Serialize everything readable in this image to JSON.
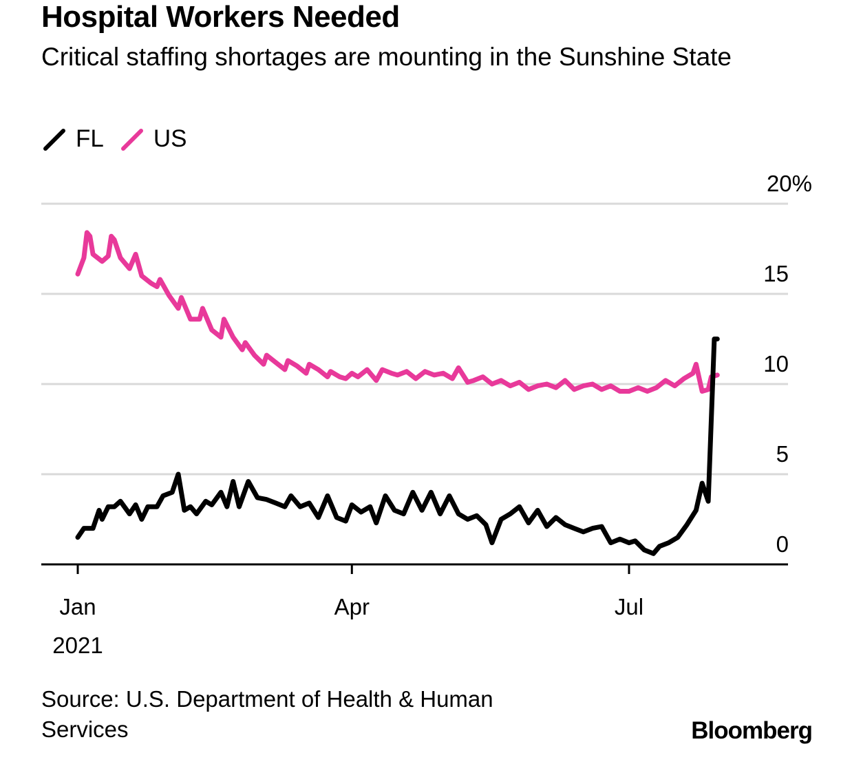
{
  "title": "Hospital Workers Needed",
  "subtitle": "Critical staffing shortages are mounting in the Sunshine State",
  "source": "Source: U.S. Department of Health & Human Services",
  "brand": "Bloomberg",
  "colors": {
    "FL": "#000000",
    "US": "#e8399a",
    "grid": "#d9d9d9",
    "axis": "#000000"
  },
  "chart_data": {
    "type": "line",
    "title": "Hospital Workers Needed",
    "subtitle": "Critical staffing shortages are mounting in the Sunshine State",
    "xlabel": "",
    "ylabel": "",
    "y_unit": "%",
    "ylim": [
      0,
      20
    ],
    "y_ticks": [
      0,
      5,
      10,
      15,
      20
    ],
    "y_tick_labels": [
      "0",
      "5",
      "10",
      "15",
      "20%"
    ],
    "x_ticks": [
      {
        "date": "2021-01-01",
        "label": "Jan",
        "sublabel": "2021"
      },
      {
        "date": "2021-04-01",
        "label": "Apr",
        "sublabel": ""
      },
      {
        "date": "2021-07-01",
        "label": "Jul",
        "sublabel": ""
      }
    ],
    "xlim": [
      "2020-12-28",
      "2021-08-20"
    ],
    "grid": true,
    "legend": "top-left",
    "series": [
      {
        "name": "FL",
        "color": "#000000",
        "points": [
          [
            "2021-01-01",
            1.5
          ],
          [
            "2021-01-03",
            2.0
          ],
          [
            "2021-01-06",
            2.0
          ],
          [
            "2021-01-08",
            3.0
          ],
          [
            "2021-01-09",
            2.5
          ],
          [
            "2021-01-11",
            3.2
          ],
          [
            "2021-01-13",
            3.2
          ],
          [
            "2021-01-15",
            3.5
          ],
          [
            "2021-01-18",
            2.8
          ],
          [
            "2021-01-20",
            3.3
          ],
          [
            "2021-01-22",
            2.5
          ],
          [
            "2021-01-24",
            3.2
          ],
          [
            "2021-01-27",
            3.2
          ],
          [
            "2021-01-29",
            3.8
          ],
          [
            "2021-02-01",
            4.0
          ],
          [
            "2021-02-03",
            5.0
          ],
          [
            "2021-02-05",
            3.0
          ],
          [
            "2021-02-07",
            3.2
          ],
          [
            "2021-02-09",
            2.8
          ],
          [
            "2021-02-12",
            3.5
          ],
          [
            "2021-02-14",
            3.3
          ],
          [
            "2021-02-17",
            4.0
          ],
          [
            "2021-02-19",
            3.2
          ],
          [
            "2021-02-21",
            4.6
          ],
          [
            "2021-02-23",
            3.2
          ],
          [
            "2021-02-26",
            4.6
          ],
          [
            "2021-03-01",
            3.7
          ],
          [
            "2021-03-04",
            3.6
          ],
          [
            "2021-03-07",
            3.4
          ],
          [
            "2021-03-10",
            3.2
          ],
          [
            "2021-03-12",
            3.8
          ],
          [
            "2021-03-15",
            3.2
          ],
          [
            "2021-03-18",
            3.4
          ],
          [
            "2021-03-21",
            2.6
          ],
          [
            "2021-03-24",
            3.8
          ],
          [
            "2021-03-27",
            2.6
          ],
          [
            "2021-03-30",
            2.4
          ],
          [
            "2021-04-01",
            3.3
          ],
          [
            "2021-04-04",
            2.9
          ],
          [
            "2021-04-07",
            3.2
          ],
          [
            "2021-04-09",
            2.3
          ],
          [
            "2021-04-12",
            3.8
          ],
          [
            "2021-04-15",
            3.0
          ],
          [
            "2021-04-18",
            2.8
          ],
          [
            "2021-04-21",
            4.0
          ],
          [
            "2021-04-24",
            3.0
          ],
          [
            "2021-04-27",
            4.0
          ],
          [
            "2021-04-30",
            2.8
          ],
          [
            "2021-05-03",
            3.8
          ],
          [
            "2021-05-06",
            2.8
          ],
          [
            "2021-05-09",
            2.5
          ],
          [
            "2021-05-12",
            2.7
          ],
          [
            "2021-05-15",
            2.2
          ],
          [
            "2021-05-17",
            1.2
          ],
          [
            "2021-05-20",
            2.5
          ],
          [
            "2021-05-23",
            2.8
          ],
          [
            "2021-05-26",
            3.2
          ],
          [
            "2021-05-29",
            2.3
          ],
          [
            "2021-06-01",
            3.0
          ],
          [
            "2021-06-04",
            2.1
          ],
          [
            "2021-06-07",
            2.6
          ],
          [
            "2021-06-10",
            2.2
          ],
          [
            "2021-06-13",
            2.0
          ],
          [
            "2021-06-16",
            1.8
          ],
          [
            "2021-06-19",
            2.0
          ],
          [
            "2021-06-22",
            2.1
          ],
          [
            "2021-06-25",
            1.2
          ],
          [
            "2021-06-28",
            1.4
          ],
          [
            "2021-07-01",
            1.2
          ],
          [
            "2021-07-03",
            1.3
          ],
          [
            "2021-07-06",
            0.8
          ],
          [
            "2021-07-09",
            0.6
          ],
          [
            "2021-07-11",
            1.0
          ],
          [
            "2021-07-14",
            1.2
          ],
          [
            "2021-07-17",
            1.5
          ],
          [
            "2021-07-20",
            2.2
          ],
          [
            "2021-07-23",
            3.0
          ],
          [
            "2021-07-25",
            4.5
          ],
          [
            "2021-07-27",
            3.5
          ],
          [
            "2021-07-29",
            12.5
          ],
          [
            "2021-07-30",
            12.5
          ]
        ]
      },
      {
        "name": "US",
        "color": "#e8399a",
        "points": [
          [
            "2021-01-01",
            16.1
          ],
          [
            "2021-01-03",
            17.0
          ],
          [
            "2021-01-04",
            18.4
          ],
          [
            "2021-01-05",
            18.2
          ],
          [
            "2021-01-06",
            17.2
          ],
          [
            "2021-01-09",
            16.8
          ],
          [
            "2021-01-11",
            17.1
          ],
          [
            "2021-01-12",
            18.2
          ],
          [
            "2021-01-13",
            18.0
          ],
          [
            "2021-01-15",
            17.0
          ],
          [
            "2021-01-18",
            16.4
          ],
          [
            "2021-01-20",
            17.2
          ],
          [
            "2021-01-22",
            16.0
          ],
          [
            "2021-01-25",
            15.6
          ],
          [
            "2021-01-27",
            15.4
          ],
          [
            "2021-01-28",
            15.8
          ],
          [
            "2021-01-31",
            14.9
          ],
          [
            "2021-02-03",
            14.2
          ],
          [
            "2021-02-04",
            14.8
          ],
          [
            "2021-02-07",
            13.6
          ],
          [
            "2021-02-10",
            13.6
          ],
          [
            "2021-02-11",
            14.2
          ],
          [
            "2021-02-14",
            13.0
          ],
          [
            "2021-02-17",
            12.6
          ],
          [
            "2021-02-18",
            13.6
          ],
          [
            "2021-02-21",
            12.6
          ],
          [
            "2021-02-24",
            11.9
          ],
          [
            "2021-02-25",
            12.3
          ],
          [
            "2021-02-28",
            11.6
          ],
          [
            "2021-03-03",
            11.1
          ],
          [
            "2021-03-04",
            11.6
          ],
          [
            "2021-03-07",
            11.2
          ],
          [
            "2021-03-10",
            10.8
          ],
          [
            "2021-03-11",
            11.3
          ],
          [
            "2021-03-14",
            11.0
          ],
          [
            "2021-03-17",
            10.6
          ],
          [
            "2021-03-18",
            11.1
          ],
          [
            "2021-03-21",
            10.8
          ],
          [
            "2021-03-24",
            10.4
          ],
          [
            "2021-03-25",
            10.7
          ],
          [
            "2021-03-28",
            10.4
          ],
          [
            "2021-03-30",
            10.3
          ],
          [
            "2021-04-01",
            10.6
          ],
          [
            "2021-04-03",
            10.4
          ],
          [
            "2021-04-06",
            10.8
          ],
          [
            "2021-04-09",
            10.2
          ],
          [
            "2021-04-11",
            10.8
          ],
          [
            "2021-04-14",
            10.6
          ],
          [
            "2021-04-16",
            10.5
          ],
          [
            "2021-04-19",
            10.7
          ],
          [
            "2021-04-22",
            10.3
          ],
          [
            "2021-04-25",
            10.7
          ],
          [
            "2021-04-28",
            10.5
          ],
          [
            "2021-05-01",
            10.6
          ],
          [
            "2021-05-04",
            10.3
          ],
          [
            "2021-05-06",
            10.9
          ],
          [
            "2021-05-09",
            10.1
          ],
          [
            "2021-05-11",
            10.2
          ],
          [
            "2021-05-14",
            10.4
          ],
          [
            "2021-05-17",
            10.0
          ],
          [
            "2021-05-20",
            10.2
          ],
          [
            "2021-05-23",
            9.9
          ],
          [
            "2021-05-26",
            10.1
          ],
          [
            "2021-05-29",
            9.7
          ],
          [
            "2021-06-01",
            9.9
          ],
          [
            "2021-06-04",
            10.0
          ],
          [
            "2021-06-07",
            9.8
          ],
          [
            "2021-06-10",
            10.2
          ],
          [
            "2021-06-13",
            9.7
          ],
          [
            "2021-06-16",
            9.9
          ],
          [
            "2021-06-19",
            10.0
          ],
          [
            "2021-06-22",
            9.7
          ],
          [
            "2021-06-25",
            9.9
          ],
          [
            "2021-06-28",
            9.6
          ],
          [
            "2021-07-01",
            9.6
          ],
          [
            "2021-07-04",
            9.8
          ],
          [
            "2021-07-07",
            9.6
          ],
          [
            "2021-07-10",
            9.8
          ],
          [
            "2021-07-13",
            10.2
          ],
          [
            "2021-07-16",
            9.9
          ],
          [
            "2021-07-19",
            10.3
          ],
          [
            "2021-07-22",
            10.6
          ],
          [
            "2021-07-23",
            11.1
          ],
          [
            "2021-07-25",
            9.6
          ],
          [
            "2021-07-27",
            9.7
          ],
          [
            "2021-07-28",
            10.4
          ],
          [
            "2021-07-30",
            10.5
          ]
        ]
      }
    ]
  }
}
